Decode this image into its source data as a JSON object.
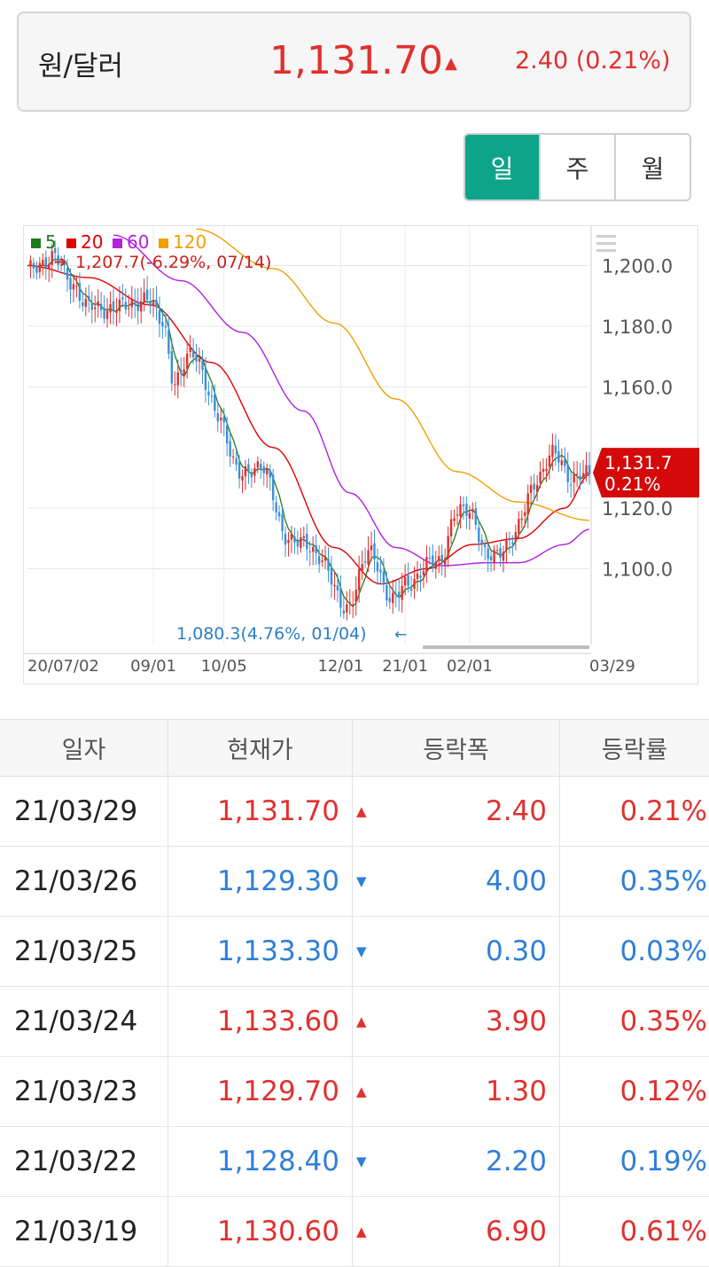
{
  "header": {
    "title": "원/달러",
    "price": "1,131.70",
    "direction_icon": "up-triangle-icon",
    "change": "2.40 (0.21%)",
    "up_color": "#e0312f",
    "down_color": "#2f7fd8"
  },
  "period_tabs": [
    {
      "label": "일",
      "active": true
    },
    {
      "label": "주",
      "active": false
    },
    {
      "label": "월",
      "active": false
    }
  ],
  "chart_data": {
    "type": "candlestick",
    "legend": [
      {
        "name": "5",
        "color": "#1e7b1e"
      },
      {
        "name": "20",
        "color": "#e00000"
      },
      {
        "name": "60",
        "color": "#b320e0"
      },
      {
        "name": "120",
        "color": "#f0a000"
      }
    ],
    "high_annotation": "1,207.7(-6.29%, 07/14)",
    "low_annotation": "1,080.3(4.76%, 01/04)",
    "current_label": {
      "price": "1,131.7",
      "change": "0.21%",
      "value": 1131.7
    },
    "ylim": [
      1075,
      1213
    ],
    "y_ticks": [
      {
        "label": "1,200.0",
        "value": 1200
      },
      {
        "label": "1,180.0",
        "value": 1180
      },
      {
        "label": "1,160.0",
        "value": 1160
      },
      {
        "label": "1,120.0",
        "value": 1120
      },
      {
        "label": "1,100.0",
        "value": 1100
      }
    ],
    "x_ticks": [
      {
        "label": "20/07/02",
        "index": 0
      },
      {
        "label": "09/01",
        "index": 41
      },
      {
        "label": "10/05",
        "index": 64
      },
      {
        "label": "12/01",
        "index": 102
      },
      {
        "label": "21/01",
        "index": 123
      },
      {
        "label": "02/01",
        "index": 144
      },
      {
        "label": "03/29",
        "index": 183
      }
    ],
    "close_keypoints": [
      {
        "i": 0,
        "v": 1198
      },
      {
        "i": 8,
        "v": 1203
      },
      {
        "i": 14,
        "v": 1195
      },
      {
        "i": 20,
        "v": 1186
      },
      {
        "i": 30,
        "v": 1186
      },
      {
        "i": 38,
        "v": 1189
      },
      {
        "i": 44,
        "v": 1182
      },
      {
        "i": 48,
        "v": 1161
      },
      {
        "i": 54,
        "v": 1172
      },
      {
        "i": 62,
        "v": 1150
      },
      {
        "i": 70,
        "v": 1130
      },
      {
        "i": 76,
        "v": 1135
      },
      {
        "i": 84,
        "v": 1111
      },
      {
        "i": 95,
        "v": 1105
      },
      {
        "i": 103,
        "v": 1087
      },
      {
        "i": 112,
        "v": 1105
      },
      {
        "i": 119,
        "v": 1089
      },
      {
        "i": 124,
        "v": 1096
      },
      {
        "i": 134,
        "v": 1103
      },
      {
        "i": 140,
        "v": 1118
      },
      {
        "i": 144,
        "v": 1120
      },
      {
        "i": 150,
        "v": 1103
      },
      {
        "i": 158,
        "v": 1110
      },
      {
        "i": 166,
        "v": 1130
      },
      {
        "i": 172,
        "v": 1138
      },
      {
        "i": 178,
        "v": 1129
      },
      {
        "i": 183,
        "v": 1131.7
      }
    ],
    "ma_lines": [
      {
        "name": "20",
        "points": [
          {
            "i": 0,
            "v": 1200
          },
          {
            "i": 20,
            "v": 1196
          },
          {
            "i": 40,
            "v": 1187
          },
          {
            "i": 60,
            "v": 1168
          },
          {
            "i": 80,
            "v": 1140
          },
          {
            "i": 100,
            "v": 1107
          },
          {
            "i": 115,
            "v": 1095
          },
          {
            "i": 130,
            "v": 1100
          },
          {
            "i": 145,
            "v": 1108
          },
          {
            "i": 160,
            "v": 1110
          },
          {
            "i": 175,
            "v": 1120
          },
          {
            "i": 183,
            "v": 1131
          }
        ]
      },
      {
        "name": "60",
        "points": [
          {
            "i": 28,
            "v": 1210
          },
          {
            "i": 50,
            "v": 1195
          },
          {
            "i": 70,
            "v": 1178
          },
          {
            "i": 90,
            "v": 1152
          },
          {
            "i": 105,
            "v": 1125
          },
          {
            "i": 120,
            "v": 1107
          },
          {
            "i": 135,
            "v": 1101
          },
          {
            "i": 150,
            "v": 1102
          },
          {
            "i": 160,
            "v": 1102
          },
          {
            "i": 175,
            "v": 1108
          },
          {
            "i": 183,
            "v": 1113
          }
        ]
      },
      {
        "name": "120",
        "points": [
          {
            "i": 55,
            "v": 1212
          },
          {
            "i": 80,
            "v": 1199
          },
          {
            "i": 100,
            "v": 1181
          },
          {
            "i": 120,
            "v": 1156
          },
          {
            "i": 140,
            "v": 1132
          },
          {
            "i": 160,
            "v": 1122
          },
          {
            "i": 183,
            "v": 1116
          }
        ]
      }
    ],
    "xlabel": "",
    "ylabel": "",
    "grid": true
  },
  "table": {
    "headers": [
      "일자",
      "현재가",
      "등락폭",
      "등락률"
    ],
    "rows": [
      {
        "date": "21/03/29",
        "price": "1,131.70",
        "dir": "up",
        "change": "2.40",
        "rate": "0.21%"
      },
      {
        "date": "21/03/26",
        "price": "1,129.30",
        "dir": "down",
        "change": "4.00",
        "rate": "0.35%"
      },
      {
        "date": "21/03/25",
        "price": "1,133.30",
        "dir": "down",
        "change": "0.30",
        "rate": "0.03%"
      },
      {
        "date": "21/03/24",
        "price": "1,133.60",
        "dir": "up",
        "change": "3.90",
        "rate": "0.35%"
      },
      {
        "date": "21/03/23",
        "price": "1,129.70",
        "dir": "up",
        "change": "1.30",
        "rate": "0.12%"
      },
      {
        "date": "21/03/22",
        "price": "1,128.40",
        "dir": "down",
        "change": "2.20",
        "rate": "0.19%"
      },
      {
        "date": "21/03/19",
        "price": "1,130.60",
        "dir": "up",
        "change": "6.90",
        "rate": "0.61%"
      }
    ]
  }
}
